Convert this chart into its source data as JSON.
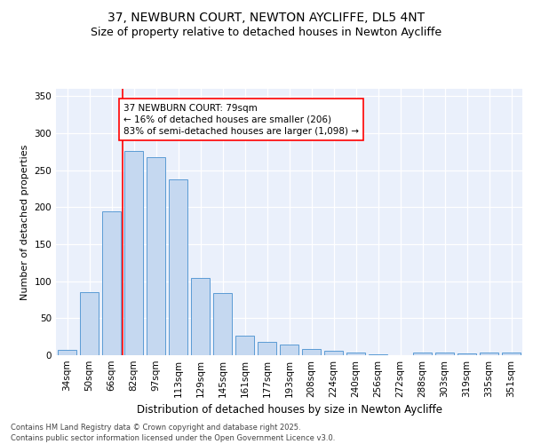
{
  "title": "37, NEWBURN COURT, NEWTON AYCLIFFE, DL5 4NT",
  "subtitle": "Size of property relative to detached houses in Newton Aycliffe",
  "xlabel": "Distribution of detached houses by size in Newton Aycliffe",
  "ylabel": "Number of detached properties",
  "categories": [
    "34sqm",
    "50sqm",
    "66sqm",
    "82sqm",
    "97sqm",
    "113sqm",
    "129sqm",
    "145sqm",
    "161sqm",
    "177sqm",
    "193sqm",
    "208sqm",
    "224sqm",
    "240sqm",
    "256sqm",
    "272sqm",
    "288sqm",
    "303sqm",
    "319sqm",
    "335sqm",
    "351sqm"
  ],
  "values": [
    7,
    85,
    195,
    276,
    268,
    238,
    104,
    84,
    27,
    18,
    15,
    8,
    6,
    4,
    1,
    0,
    4,
    4,
    3,
    4,
    4
  ],
  "bar_color": "#c5d8f0",
  "bar_edge_color": "#5b9bd5",
  "vline_color": "#ff0000",
  "annotation_text": "37 NEWBURN COURT: 79sqm\n← 16% of detached houses are smaller (206)\n83% of semi-detached houses are larger (1,098) →",
  "annotation_box_color": "#ffffff",
  "annotation_box_edge_color": "#ff0000",
  "ylim": [
    0,
    360
  ],
  "yticks": [
    0,
    50,
    100,
    150,
    200,
    250,
    300,
    350
  ],
  "background_color": "#eaf0fb",
  "footer_text": "Contains HM Land Registry data © Crown copyright and database right 2025.\nContains public sector information licensed under the Open Government Licence v3.0.",
  "title_fontsize": 10,
  "subtitle_fontsize": 9,
  "xlabel_fontsize": 8.5,
  "ylabel_fontsize": 8,
  "tick_fontsize": 7.5,
  "annotation_fontsize": 7.5,
  "footer_fontsize": 6
}
